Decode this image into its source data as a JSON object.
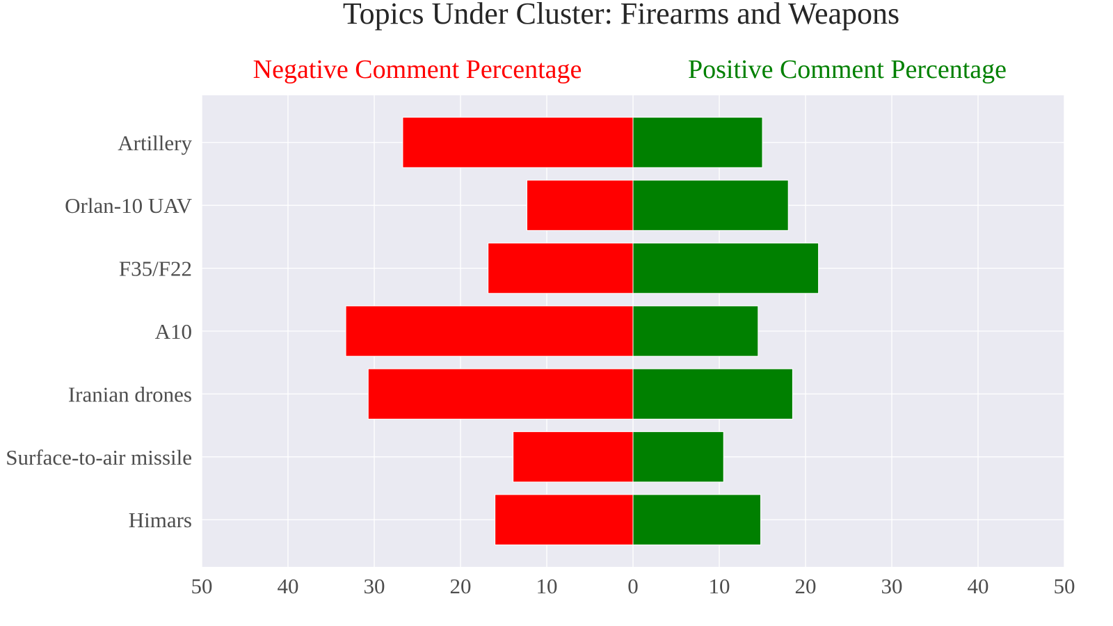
{
  "chart_data": {
    "type": "bar",
    "orientation": "horizontal-diverging",
    "title": "Topics Under Cluster: Firearms and Weapons",
    "categories": [
      "Artillery",
      "Orlan-10 UAV",
      "F35/F22",
      "A10",
      "Iranian drones",
      "Surface-to-air missile",
      "Himars"
    ],
    "series": [
      {
        "name": "Negative Comment Percentage",
        "color": "#ff0000",
        "values": [
          26.7,
          12.3,
          16.8,
          33.3,
          30.7,
          13.9,
          16.0
        ]
      },
      {
        "name": "Positive Comment Percentage",
        "color": "#008000",
        "values": [
          15.0,
          18.0,
          21.5,
          14.5,
          18.5,
          10.5,
          14.8
        ]
      }
    ],
    "xlim": [
      -50,
      50
    ],
    "xticks": [
      -50,
      -40,
      -30,
      -20,
      -10,
      0,
      10,
      20,
      30,
      40,
      50
    ],
    "xtick_labels": [
      "50",
      "40",
      "30",
      "20",
      "10",
      "0",
      "10",
      "20",
      "30",
      "40",
      "50"
    ],
    "grid": true,
    "background": "#eaeaf2",
    "grid_color": "#ffffff",
    "tick_color": "#4d4d4d",
    "title_color": "#262626"
  }
}
